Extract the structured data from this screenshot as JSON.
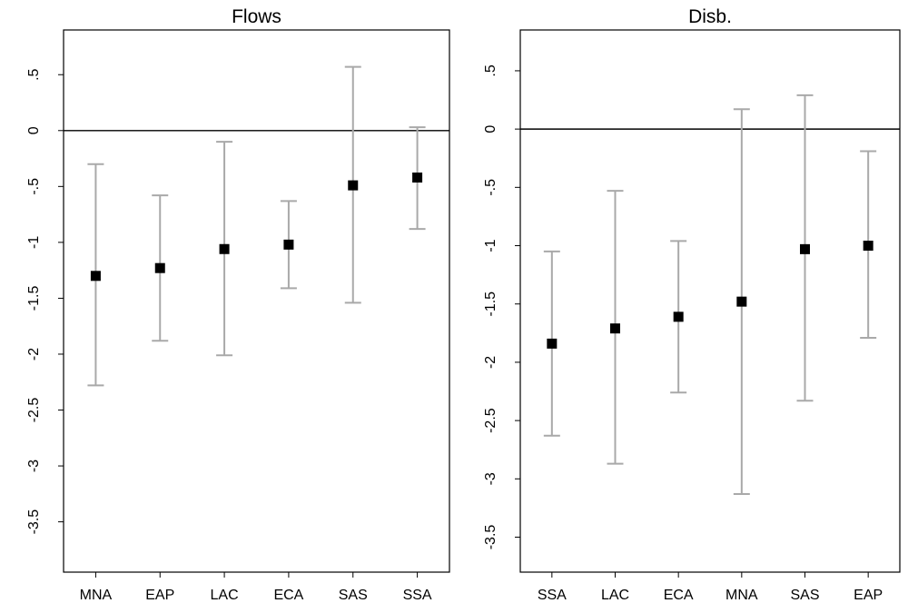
{
  "chart_data": [
    {
      "type": "scatter",
      "subtype": "point-with-error-bars",
      "title": "Flows",
      "xlabel": "",
      "ylabel": "",
      "ylim": [
        -3.95,
        0.9
      ],
      "yticks": [
        0.5,
        0,
        -0.5,
        -1,
        -1.5,
        -2,
        -2.5,
        -3,
        -3.5
      ],
      "ytick_labels": [
        ".5",
        "0",
        "-.5",
        "-1",
        "-1.5",
        "-2",
        "-2.5",
        "-3",
        "-3.5"
      ],
      "reference_line": 0,
      "grid": false,
      "categories": [
        "MNA",
        "EAP",
        "LAC",
        "ECA",
        "SAS",
        "SSA"
      ],
      "values": [
        -1.3,
        -1.23,
        -1.06,
        -1.02,
        -0.49,
        -0.42
      ],
      "ci_low": [
        -2.28,
        -1.88,
        -2.01,
        -1.41,
        -1.54,
        -0.88
      ],
      "ci_high": [
        -0.3,
        -0.58,
        -0.1,
        -0.63,
        0.57,
        0.03
      ]
    },
    {
      "type": "scatter",
      "subtype": "point-with-error-bars",
      "title": "Disb.",
      "xlabel": "",
      "ylabel": "",
      "ylim": [
        -3.8,
        0.85
      ],
      "yticks": [
        0.5,
        0,
        -0.5,
        -1,
        -1.5,
        -2,
        -2.5,
        -3,
        -3.5
      ],
      "ytick_labels": [
        ".5",
        "0",
        "-.5",
        "-1",
        "-1.5",
        "-2",
        "-2.5",
        "-3",
        "-3.5"
      ],
      "reference_line": 0,
      "grid": false,
      "categories": [
        "SSA",
        "LAC",
        "ECA",
        "MNA",
        "SAS",
        "EAP"
      ],
      "values": [
        -1.84,
        -1.71,
        -1.61,
        -1.48,
        -1.03,
        -1.0
      ],
      "ci_low": [
        -2.63,
        -2.87,
        -2.26,
        -3.13,
        -2.33,
        -1.79
      ],
      "ci_high": [
        -1.05,
        -0.53,
        -0.96,
        0.17,
        0.29,
        -0.19
      ]
    }
  ],
  "colors": {
    "error_bar": "#a9a9a9",
    "point": "#000000",
    "frame": "#000000",
    "reference_line": "#000000"
  }
}
